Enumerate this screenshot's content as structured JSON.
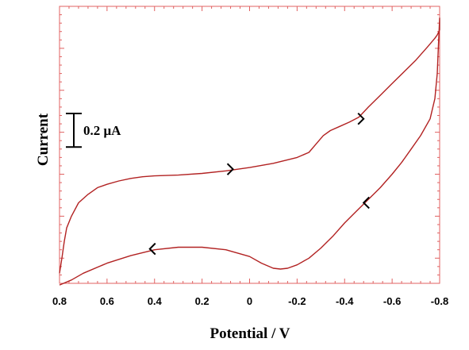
{
  "chart_data": {
    "type": "line",
    "title": "",
    "xlabel": "Potential / V",
    "ylabel": "Current",
    "xlim": [
      0.8,
      -0.8
    ],
    "x_ticks": [
      0.8,
      0.6,
      0.4,
      0.2,
      0,
      -0.2,
      -0.4,
      -0.6,
      -0.8
    ],
    "x_tick_labels": [
      "0.8",
      "0.6",
      "0.4",
      "0.2",
      "0",
      "-0.2",
      "-0.4",
      "-0.6",
      "-0.8"
    ],
    "y_axis_numeric_labels": false,
    "ylim": [
      0,
      1.65
    ],
    "scale_bar": {
      "label": "0.2 μA",
      "value": 0.2
    },
    "line_color": "#b22222",
    "frame_color": "#e06060",
    "grid": false,
    "legend": "none",
    "series": [
      {
        "points": [
          [
            0.8,
            0.06
          ],
          [
            0.79,
            0.15
          ],
          [
            0.78,
            0.25
          ],
          [
            0.77,
            0.33
          ],
          [
            0.75,
            0.4
          ],
          [
            0.72,
            0.48
          ],
          [
            0.68,
            0.53
          ],
          [
            0.64,
            0.57
          ],
          [
            0.6,
            0.59
          ],
          [
            0.55,
            0.61
          ],
          [
            0.5,
            0.625
          ],
          [
            0.45,
            0.635
          ],
          [
            0.4,
            0.64
          ],
          [
            0.3,
            0.645
          ],
          [
            0.2,
            0.655
          ],
          [
            0.1,
            0.67
          ],
          [
            0.0,
            0.69
          ],
          [
            -0.1,
            0.715
          ],
          [
            -0.2,
            0.75
          ],
          [
            -0.25,
            0.78
          ],
          [
            -0.28,
            0.83
          ],
          [
            -0.31,
            0.88
          ],
          [
            -0.34,
            0.91
          ],
          [
            -0.38,
            0.935
          ],
          [
            -0.42,
            0.96
          ],
          [
            -0.46,
            0.99
          ],
          [
            -0.5,
            1.05
          ],
          [
            -0.55,
            1.12
          ],
          [
            -0.6,
            1.19
          ],
          [
            -0.65,
            1.26
          ],
          [
            -0.7,
            1.33
          ],
          [
            -0.75,
            1.41
          ],
          [
            -0.78,
            1.46
          ],
          [
            -0.79,
            1.48
          ],
          [
            -0.8,
            1.51
          ],
          [
            -0.8,
            1.58
          ],
          [
            -0.795,
            1.42
          ],
          [
            -0.79,
            1.25
          ],
          [
            -0.78,
            1.1
          ],
          [
            -0.76,
            0.98
          ],
          [
            -0.72,
            0.88
          ],
          [
            -0.68,
            0.8
          ],
          [
            -0.64,
            0.72
          ],
          [
            -0.6,
            0.65
          ],
          [
            -0.55,
            0.57
          ],
          [
            -0.5,
            0.5
          ],
          [
            -0.45,
            0.43
          ],
          [
            -0.4,
            0.36
          ],
          [
            -0.35,
            0.28
          ],
          [
            -0.3,
            0.21
          ],
          [
            -0.25,
            0.15
          ],
          [
            -0.2,
            0.11
          ],
          [
            -0.16,
            0.09
          ],
          [
            -0.13,
            0.085
          ],
          [
            -0.1,
            0.09
          ],
          [
            -0.05,
            0.12
          ],
          [
            0.0,
            0.16
          ],
          [
            0.1,
            0.2
          ],
          [
            0.2,
            0.215
          ],
          [
            0.3,
            0.215
          ],
          [
            0.4,
            0.2
          ],
          [
            0.5,
            0.165
          ],
          [
            0.6,
            0.12
          ],
          [
            0.7,
            0.06
          ],
          [
            0.75,
            0.02
          ],
          [
            0.8,
            -0.01
          ]
        ]
      }
    ],
    "direction_arrows": [
      {
        "at": [
          0.07,
          0.68
        ],
        "direction": "right"
      },
      {
        "at": [
          -0.48,
          0.98
        ],
        "direction": "right"
      },
      {
        "at": [
          -0.48,
          0.48
        ],
        "direction": "left"
      },
      {
        "at": [
          0.42,
          0.205
        ],
        "direction": "left"
      }
    ]
  }
}
